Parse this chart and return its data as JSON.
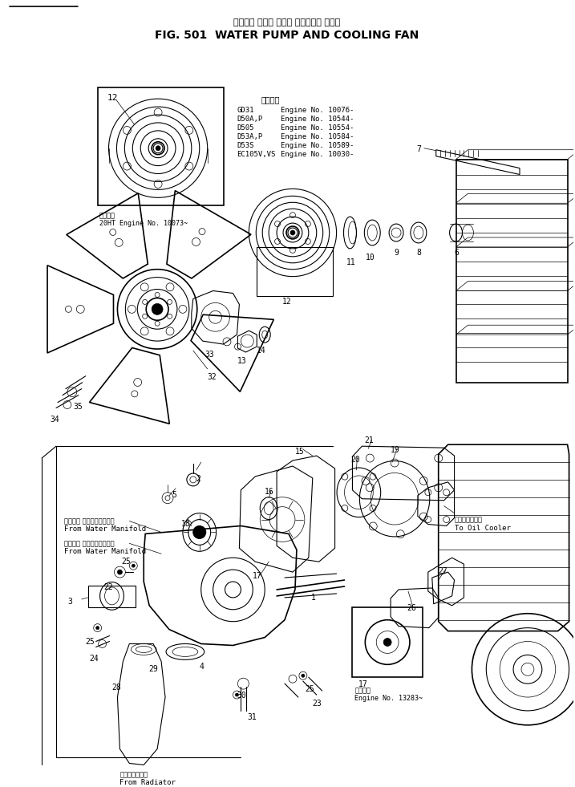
{
  "title_japanese": "ウォータ ポンプ および クーリング ファン",
  "title_english": "FIG. 501  WATER PUMP AND COOLING FAN",
  "bg_color": "#ffffff",
  "dpi": 100,
  "fig_width": 7.17,
  "fig_height": 9.81,
  "applicability_header": "適用号機",
  "applicability_models": [
    "GD31",
    "D50A,P",
    "D505",
    "D53A,P",
    "D53S",
    "EC105V,VS"
  ],
  "applicability_engines": [
    "Engine No. 10076-",
    "Engine No. 10544-",
    "Engine No. 10554-",
    "Engine No. 10584-",
    "Engine No. 10589-",
    "Engine No. 10030-"
  ],
  "note_upper_jp": "適用号機",
  "note_upper_en": "20HT Engine No. 10073~",
  "note_lower_jp": "適用号機",
  "note_lower_en": "Engine No. 13283~",
  "label_oil_cooler_jp": "オイルクーラへ",
  "label_oil_cooler_en": "To Oil Cooler",
  "label_water1_jp": "ウォータ マニホールドから",
  "label_water1_en": "From Water Manifold",
  "label_water2_jp": "ウォータ マニホールドから",
  "label_water2_en": "From Water Manifold",
  "label_radiator_jp": "ラジエータから",
  "label_radiator_en": "From Radiator"
}
